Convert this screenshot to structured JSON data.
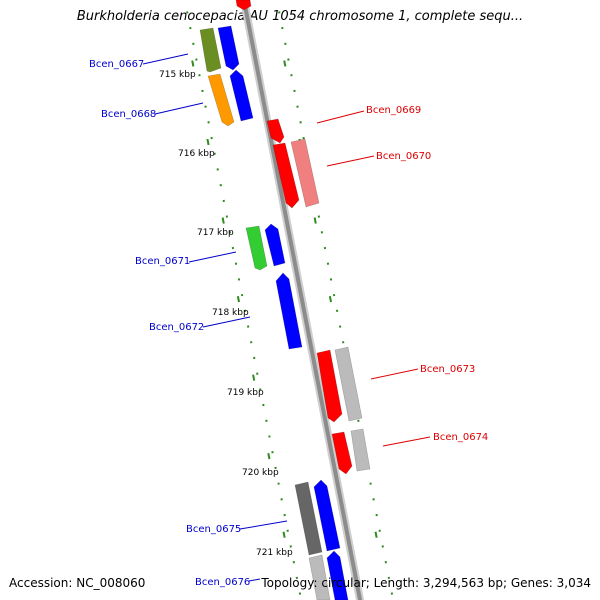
{
  "header": {
    "title": "Burkholderia cenocepacia AU 1054 chromosome 1, complete sequ..."
  },
  "footer": {
    "accession": "Accession: NC_008060",
    "summary": "Topology: circular; Length: 3,294,563 bp; Genes: 3,034"
  },
  "colors": {
    "backbone": "#8c8c8c",
    "tick": "#2e8b1e",
    "forward_label": "#0000cc",
    "reverse_label": "#dd0000",
    "blue": "#0000ff",
    "red": "#ff0000",
    "pink": "#f08080",
    "olive": "#6b8e23",
    "orange": "#ff9900",
    "green": "#33cc33",
    "lightgray": "#bbbbbb",
    "darkgray": "#666666"
  },
  "kbp_markers": [
    "715 kbp",
    "716 kbp",
    "717 kbp",
    "718 kbp",
    "719 kbp",
    "720 kbp",
    "721 kbp"
  ],
  "gene_labels": {
    "forward": [
      "Bcen_0667",
      "Bcen_0668",
      "Bcen_0671",
      "Bcen_0672",
      "Bcen_0675",
      "Bcen_0676"
    ],
    "reverse": [
      "Bcen_0669",
      "Bcen_0670",
      "Bcen_0673",
      "Bcen_0674"
    ]
  }
}
